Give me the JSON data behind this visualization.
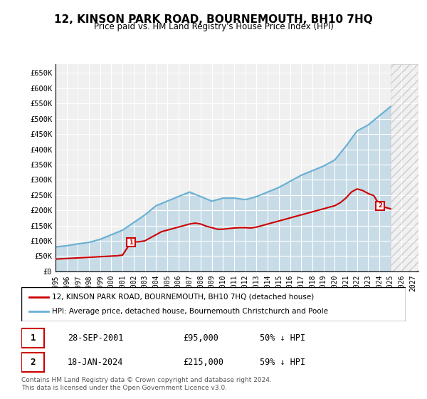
{
  "title": "12, KINSON PARK ROAD, BOURNEMOUTH, BH10 7HQ",
  "subtitle": "Price paid vs. HM Land Registry's House Price Index (HPI)",
  "legend_line1": "12, KINSON PARK ROAD, BOURNEMOUTH, BH10 7HQ (detached house)",
  "legend_line2": "HPI: Average price, detached house, Bournemouth Christchurch and Poole",
  "footnote1": "Contains HM Land Registry data © Crown copyright and database right 2024.",
  "footnote2": "This data is licensed under the Open Government Licence v3.0.",
  "table_row1": [
    "1",
    "28-SEP-2001",
    "£95,000",
    "50% ↓ HPI"
  ],
  "table_row2": [
    "2",
    "18-JAN-2024",
    "£215,000",
    "59% ↓ HPI"
  ],
  "ylim": [
    0,
    680000
  ],
  "yticks": [
    0,
    50000,
    100000,
    150000,
    200000,
    250000,
    300000,
    350000,
    400000,
    450000,
    500000,
    550000,
    600000,
    650000
  ],
  "ytick_labels": [
    "£0",
    "£50K",
    "£100K",
    "£150K",
    "£200K",
    "£250K",
    "£300K",
    "£350K",
    "£400K",
    "£450K",
    "£500K",
    "£550K",
    "£600K",
    "£650K"
  ],
  "xlim_start": 1995.0,
  "xlim_end": 2027.5,
  "property_color": "#cc0000",
  "hpi_color": "#6ab0d4",
  "background_color": "#ffffff",
  "plot_bg_color": "#f0f0f0",
  "marker1_x": 2001.75,
  "marker1_y": 95000,
  "marker2_x": 2024.05,
  "marker2_y": 215000,
  "sale1_label": "1",
  "sale2_label": "2",
  "hpi_years": [
    1995,
    1996,
    1997,
    1998,
    1999,
    2000,
    2001,
    2002,
    2003,
    2004,
    2005,
    2006,
    2007,
    2008,
    2009,
    2010,
    2011,
    2012,
    2013,
    2014,
    2015,
    2016,
    2017,
    2018,
    2019,
    2020,
    2021,
    2022,
    2023,
    2024,
    2025
  ],
  "hpi_values": [
    80000,
    84000,
    90000,
    95000,
    105000,
    120000,
    135000,
    160000,
    185000,
    215000,
    230000,
    245000,
    260000,
    245000,
    230000,
    240000,
    240000,
    235000,
    245000,
    260000,
    275000,
    295000,
    315000,
    330000,
    345000,
    365000,
    410000,
    460000,
    480000,
    510000,
    540000
  ],
  "property_years": [
    1995.0,
    1995.5,
    1996.0,
    1996.5,
    1997.0,
    1997.5,
    1998.0,
    1998.5,
    1999.0,
    1999.5,
    2000.0,
    2000.5,
    2001.0,
    2001.75,
    2002.0,
    2002.5,
    2003.0,
    2003.5,
    2004.0,
    2004.5,
    2005.0,
    2005.5,
    2006.0,
    2006.5,
    2007.0,
    2007.5,
    2008.0,
    2008.5,
    2009.0,
    2009.5,
    2010.0,
    2010.5,
    2011.0,
    2011.5,
    2012.0,
    2012.5,
    2013.0,
    2013.5,
    2014.0,
    2014.5,
    2015.0,
    2015.5,
    2016.0,
    2016.5,
    2017.0,
    2017.5,
    2018.0,
    2018.5,
    2019.0,
    2019.5,
    2020.0,
    2020.5,
    2021.0,
    2021.5,
    2022.0,
    2022.5,
    2023.0,
    2023.5,
    2024.05,
    2024.5,
    2025.0
  ],
  "property_values": [
    40000,
    41000,
    42000,
    43000,
    44000,
    45000,
    46000,
    47000,
    48000,
    49000,
    50000,
    51000,
    53000,
    95000,
    96000,
    97000,
    100000,
    110000,
    120000,
    130000,
    135000,
    140000,
    145000,
    150000,
    155000,
    158000,
    155000,
    148000,
    143000,
    138000,
    138000,
    140000,
    142000,
    143000,
    143000,
    142000,
    145000,
    150000,
    155000,
    160000,
    165000,
    170000,
    175000,
    180000,
    185000,
    190000,
    195000,
    200000,
    205000,
    210000,
    215000,
    225000,
    240000,
    260000,
    270000,
    265000,
    255000,
    248000,
    215000,
    210000,
    205000
  ]
}
